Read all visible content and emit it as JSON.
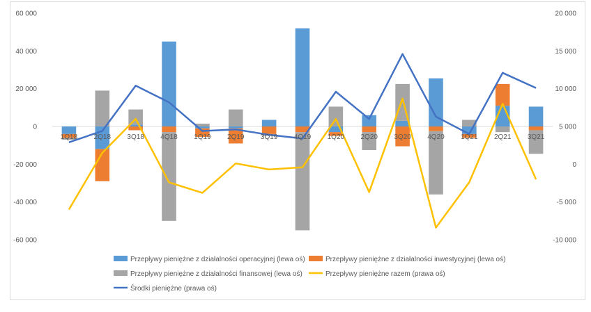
{
  "chart_data": {
    "type": "bar",
    "categories": [
      "1Q18",
      "2Q18",
      "3Q18",
      "4Q18",
      "1Q19",
      "2Q19",
      "3Q19",
      "4Q19",
      "1Q20",
      "2Q20",
      "3Q20",
      "4Q20",
      "1Q21",
      "2Q21",
      "3Q21"
    ],
    "y_left": {
      "min": -60000,
      "max": 60000,
      "step": 20000,
      "tick_labels": [
        "60 000",
        "40 000",
        "20 000",
        "0",
        "-20 000",
        "-40 000",
        "-60 000"
      ]
    },
    "y_right": {
      "min": -10000,
      "max": 20000,
      "step": 5000,
      "tick_labels": [
        "20 000",
        "15 000",
        "10 000",
        "5 000",
        "0",
        "-5 000",
        "-10 000"
      ]
    },
    "series": [
      {
        "name": "Przepływy pieniężne z działalności operacyjnej (lewa oś)",
        "type": "bar",
        "axis": "left",
        "color": "#5b9bd5",
        "values": [
          -4000,
          -12000,
          1000,
          45000,
          -1000,
          -1000,
          3500,
          52000,
          -3000,
          6000,
          3000,
          25500,
          -4000,
          11000,
          10500
        ]
      },
      {
        "name": "Przepływy pieniężne z działalności inwestycyjnej (lewa oś)",
        "type": "bar",
        "axis": "left",
        "color": "#ed7d31",
        "values": [
          -2000,
          -17000,
          -2000,
          -3000,
          -4500,
          -8000,
          -4000,
          -3000,
          -2000,
          -3000,
          -10500,
          -2500,
          -2000,
          11500,
          -2000
        ]
      },
      {
        "name": "Przepływy pieniężne z działalności finansowej (lewa oś)",
        "type": "bar",
        "axis": "left",
        "color": "#a5a5a5",
        "values": [
          -1000,
          19000,
          8000,
          -47000,
          1500,
          9000,
          -1000,
          -52000,
          10500,
          -9500,
          19500,
          -33500,
          3500,
          -3000,
          -12500
        ]
      },
      {
        "name": "Przepływy pieniężne razem (prawa oś)",
        "type": "line",
        "axis": "right",
        "color": "#ffc000",
        "values": [
          -6000,
          1500,
          6000,
          -2400,
          -3800,
          100,
          -700,
          -400,
          6000,
          -3700,
          8700,
          -8400,
          -2400,
          8000,
          -2000
        ]
      },
      {
        "name": "Środki pieniężne (prawa oś)",
        "type": "line",
        "axis": "right",
        "color": "#4472c4",
        "values": [
          2900,
          4400,
          10400,
          8200,
          4400,
          4600,
          3900,
          3400,
          9600,
          6000,
          14600,
          6300,
          4000,
          12100,
          10100
        ]
      }
    ],
    "grid": false,
    "legend_position": "bottom"
  }
}
